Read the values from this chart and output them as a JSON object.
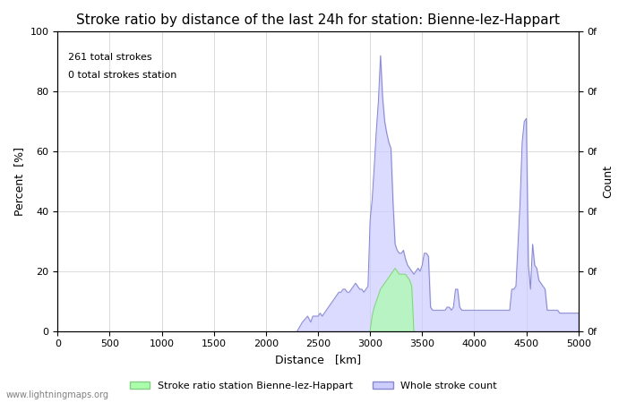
{
  "title": "Stroke ratio by distance of the last 24h for station: Bienne-lez-Happart",
  "xlabel": "Distance   [km]",
  "ylabel": "Percent  [%]",
  "ylabel_right": "Count",
  "annotation_line1": "261 total strokes",
  "annotation_line2": "0 total strokes station",
  "xlim": [
    0,
    5000
  ],
  "ylim": [
    0,
    100
  ],
  "xticks": [
    0,
    500,
    1000,
    1500,
    2000,
    2500,
    3000,
    3500,
    4000,
    4500,
    5000
  ],
  "yticks": [
    0,
    20,
    40,
    60,
    80,
    100
  ],
  "yticks_right": [
    "0f",
    "0f",
    "0f",
    "0f",
    "0f",
    "0f",
    "0f",
    "0f",
    "0f",
    "0f",
    "0f"
  ],
  "background_color": "#ffffff",
  "grid_color": "#cccccc",
  "line_color": "#8888cc",
  "fill_color_station": "#aaffaa",
  "fill_color_whole": "#ccccff",
  "legend_label_station": "Stroke ratio station Bienne-lez-Happart",
  "legend_label_whole": "Whole stroke count",
  "watermark": "www.lightningmaps.org",
  "title_fontsize": 11,
  "axis_fontsize": 9,
  "tick_fontsize": 8,
  "whole_stroke_x": [
    2300,
    2350,
    2400,
    2430,
    2450,
    2480,
    2500,
    2520,
    2540,
    2560,
    2580,
    2600,
    2620,
    2640,
    2660,
    2680,
    2700,
    2720,
    2740,
    2760,
    2780,
    2800,
    2820,
    2840,
    2860,
    2880,
    2900,
    2920,
    2940,
    2960,
    2980,
    3000,
    3020,
    3040,
    3060,
    3080,
    3100,
    3120,
    3140,
    3160,
    3180,
    3200,
    3220,
    3240,
    3260,
    3280,
    3300,
    3320,
    3340,
    3360,
    3380,
    3400,
    3420,
    3440,
    3460,
    3480,
    3500,
    3520,
    3540,
    3560,
    3580,
    3600,
    3620,
    3640,
    3660,
    3680,
    3700,
    3720,
    3740,
    3760,
    3780,
    3800,
    3820,
    3840,
    3860,
    3880,
    3900,
    3920,
    3940,
    3960,
    3980,
    4000,
    4020,
    4040,
    4060,
    4080,
    4100,
    4120,
    4140,
    4160,
    4180,
    4200,
    4220,
    4240,
    4260,
    4280,
    4300,
    4320,
    4340,
    4360,
    4380,
    4400,
    4420,
    4440,
    4460,
    4480,
    4500,
    4520,
    4540,
    4560,
    4580,
    4600,
    4620,
    4640,
    4660,
    4680,
    4700,
    4720,
    4740,
    4760,
    4780,
    4800,
    4820,
    4840,
    4860,
    4880,
    4900,
    4920,
    4940,
    4960,
    4980,
    5000
  ],
  "whole_stroke_y": [
    0,
    3,
    5,
    3,
    5,
    5,
    5,
    6,
    5,
    6,
    7,
    8,
    9,
    10,
    11,
    12,
    13,
    13,
    14,
    14,
    13,
    13,
    14,
    15,
    16,
    15,
    14,
    14,
    13,
    14,
    15,
    37,
    44,
    55,
    67,
    77,
    92,
    78,
    70,
    66,
    63,
    61,
    43,
    29,
    27,
    26,
    26,
    27,
    24,
    22,
    21,
    20,
    19,
    20,
    21,
    20,
    22,
    26,
    26,
    25,
    8,
    7,
    7,
    7,
    7,
    7,
    7,
    7,
    8,
    8,
    7,
    8,
    14,
    14,
    8,
    7,
    7,
    7,
    7,
    7,
    7,
    7,
    7,
    7,
    7,
    7,
    7,
    7,
    7,
    7,
    7,
    7,
    7,
    7,
    7,
    7,
    7,
    7,
    7,
    14,
    14,
    15,
    29,
    43,
    63,
    70,
    71,
    22,
    14,
    29,
    22,
    21,
    17,
    16,
    15,
    14,
    7,
    7,
    7,
    7,
    7,
    7,
    6,
    6,
    6,
    6,
    6,
    6,
    6,
    6,
    6,
    6
  ],
  "station_stroke_x": [
    3000,
    3020,
    3040,
    3060,
    3080,
    3100,
    3120,
    3140,
    3160,
    3180,
    3200,
    3220,
    3240,
    3260,
    3280,
    3300,
    3320,
    3340,
    3360,
    3380,
    3400,
    3420
  ],
  "station_stroke_y": [
    0,
    5,
    8,
    10,
    12,
    14,
    15,
    16,
    17,
    18,
    19,
    20,
    21,
    20,
    19,
    19,
    19,
    19,
    18,
    17,
    15,
    0
  ]
}
